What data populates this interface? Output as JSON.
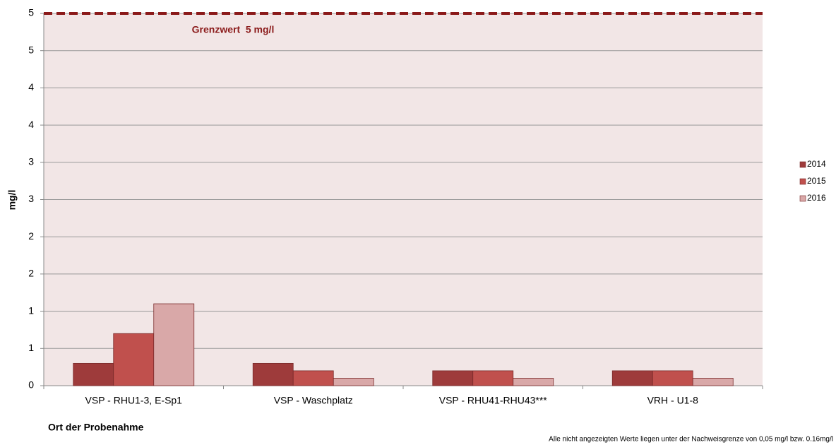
{
  "chart_data": {
    "type": "bar",
    "categories": [
      "VSP - RHU1-3, E-Sp1",
      "VSP - Waschplatz",
      "VSP - RHU41-RHU43***",
      "VRH - U1-8"
    ],
    "series": [
      {
        "name": "2014",
        "color": "#9e3b3b",
        "values": [
          0.3,
          0.3,
          0.2,
          0.2
        ]
      },
      {
        "name": "2015",
        "color": "#c0504d",
        "values": [
          0.7,
          0.2,
          0.2,
          0.2
        ]
      },
      {
        "name": "2016",
        "color": "#d9a8a8",
        "values": [
          1.1,
          0.1,
          0.1,
          0.1
        ]
      }
    ],
    "ylabel": "mg/l",
    "xlabel": "Ort der Probenahme",
    "ylim": [
      0,
      5
    ],
    "yticks": [
      0,
      {
        "value": 0.5,
        "label": "1"
      },
      1,
      {
        "value": 1.5,
        "label": "2"
      },
      2,
      {
        "value": 2.5,
        "label": "3"
      },
      3,
      {
        "value": 3.5,
        "label": "4"
      },
      4,
      {
        "value": 4.5,
        "label": "5"
      },
      5
    ],
    "grid": true,
    "legend": "right",
    "threshold": {
      "value": 5,
      "label": "Grenzwert  5 mg/l",
      "color": "#8b1a1a"
    },
    "footnote": "Alle nicht angezeigten Werte liegen unter der Nachweisgrenze von 0,05 mg/l bzw. 0.16mg/l"
  }
}
